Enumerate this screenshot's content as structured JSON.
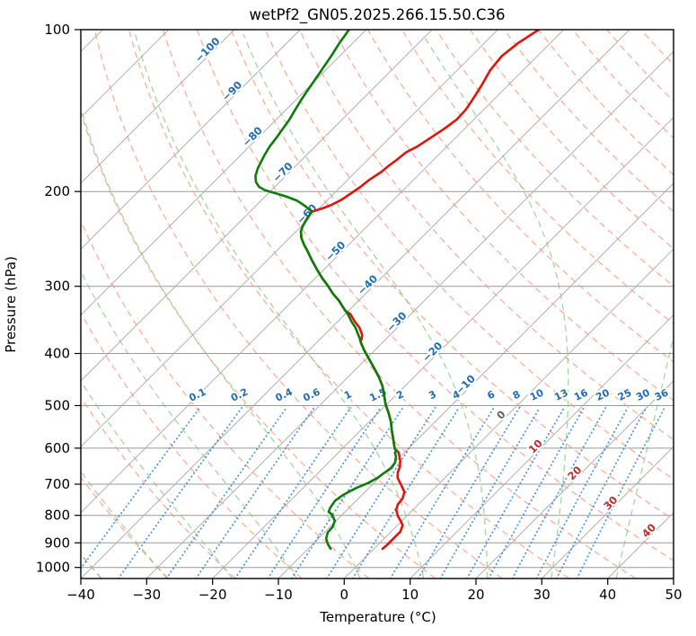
{
  "title": "wetPf2_GN05.2025.266.15.50.C36",
  "axes": {
    "xlabel": "Temperature (°C)",
    "ylabel": "Pressure (hPa)",
    "pressure_ticks": [
      100,
      200,
      300,
      400,
      500,
      600,
      700,
      800,
      900,
      1000
    ],
    "temp_ticks": [
      -40,
      -30,
      -20,
      -10,
      0,
      10,
      20,
      30,
      40,
      50
    ],
    "pressure_range": [
      100,
      1048
    ],
    "temp_range_at_surface": [
      -40,
      50
    ],
    "skew_degrees": 45
  },
  "chart_data": {
    "type": "skewt-log-p",
    "title": "wetPf2_GN05.2025.266.15.50.C36",
    "isotherms": {
      "min": -140,
      "max": 50,
      "step": 10
    },
    "isotherm_labels": [
      {
        "t": -100,
        "p": 109
      },
      {
        "t": -90,
        "p": 130
      },
      {
        "t": -80,
        "p": 158
      },
      {
        "t": -70,
        "p": 184
      },
      {
        "t": -60,
        "p": 220
      },
      {
        "t": -50,
        "p": 258
      },
      {
        "t": -40,
        "p": 298
      },
      {
        "t": -30,
        "p": 349
      },
      {
        "t": -20,
        "p": 397
      },
      {
        "t": -10,
        "p": 457
      },
      {
        "t": 0,
        "p": 520
      },
      {
        "t": 10,
        "p": 595
      },
      {
        "t": 20,
        "p": 667
      },
      {
        "t": 30,
        "p": 758
      },
      {
        "t": 40,
        "p": 853
      }
    ],
    "dry_adiabats": {
      "theta_min": -40,
      "theta_max": 190,
      "step": 10
    },
    "moist_adiabats": {
      "t0_min": -40,
      "t0_max": 80,
      "step": 10
    },
    "mixing_ratio": {
      "values": [
        0.1,
        0.2,
        0.4,
        0.6,
        1,
        1.5,
        2,
        3,
        4,
        6,
        8,
        10,
        13,
        16,
        20,
        25,
        30,
        36
      ],
      "top_pressure": 500,
      "label_pressure": 497
    },
    "series": [
      {
        "name": "temperature",
        "units": "degC vs hPa",
        "points": [
          [
            100,
            -53.8
          ],
          [
            106,
            -54.9
          ],
          [
            112,
            -55.4
          ],
          [
            119,
            -55.0
          ],
          [
            127,
            -54.0
          ],
          [
            134,
            -53.3
          ],
          [
            141,
            -52.7
          ],
          [
            147,
            -52.6
          ],
          [
            153,
            -53.1
          ],
          [
            159,
            -53.8
          ],
          [
            165,
            -54.5
          ],
          [
            169,
            -55.3
          ],
          [
            175,
            -55.6
          ],
          [
            179,
            -55.9
          ],
          [
            184,
            -56.1
          ],
          [
            190,
            -56.7
          ],
          [
            196,
            -57.0
          ],
          [
            201,
            -57.4
          ],
          [
            207,
            -57.9
          ],
          [
            212,
            -58.7
          ],
          [
            215,
            -59.5
          ],
          [
            218,
            -60.6
          ],
          [
            222,
            -60.4
          ],
          [
            226,
            -60.2
          ],
          [
            232,
            -59.8
          ],
          [
            237,
            -59.3
          ],
          [
            244,
            -58.2
          ],
          [
            251,
            -56.8
          ],
          [
            258,
            -55.3
          ],
          [
            268,
            -53.3
          ],
          [
            279,
            -51.1
          ],
          [
            290,
            -48.9
          ],
          [
            299,
            -47.0
          ],
          [
            310,
            -44.9
          ],
          [
            319,
            -43.0
          ],
          [
            328,
            -41.4
          ],
          [
            333,
            -40.5
          ],
          [
            338,
            -39.2
          ],
          [
            349,
            -37.4
          ],
          [
            358,
            -35.8
          ],
          [
            369,
            -34.3
          ],
          [
            375,
            -33.8
          ],
          [
            381,
            -33.4
          ],
          [
            394,
            -31.7
          ],
          [
            410,
            -29.5
          ],
          [
            426,
            -27.4
          ],
          [
            442,
            -25.4
          ],
          [
            460,
            -23.4
          ],
          [
            478,
            -21.8
          ],
          [
            497,
            -20.2
          ],
          [
            516,
            -18.4
          ],
          [
            536,
            -16.7
          ],
          [
            557,
            -15.2
          ],
          [
            579,
            -13.6
          ],
          [
            602,
            -12.0
          ],
          [
            606,
            -11.5
          ],
          [
            609,
            -11.1
          ],
          [
            615,
            -10.6
          ],
          [
            621,
            -10.2
          ],
          [
            633,
            -9.4
          ],
          [
            650,
            -8.5
          ],
          [
            665,
            -8.0
          ],
          [
            681,
            -7.2
          ],
          [
            694,
            -6.2
          ],
          [
            710,
            -5.0
          ],
          [
            724,
            -4.0
          ],
          [
            744,
            -3.3
          ],
          [
            764,
            -3.1
          ],
          [
            782,
            -2.5
          ],
          [
            803,
            -1.3
          ],
          [
            819,
            -0.2
          ],
          [
            835,
            0.8
          ],
          [
            858,
            1.4
          ],
          [
            874,
            1.4
          ],
          [
            891,
            1.4
          ],
          [
            909,
            1.4
          ],
          [
            923,
            1.3
          ]
        ]
      },
      {
        "name": "dewpoint",
        "units": "degC vs hPa",
        "points": [
          [
            100,
            -82.6
          ],
          [
            106,
            -82.0
          ],
          [
            112,
            -81.3
          ],
          [
            119,
            -80.6
          ],
          [
            127,
            -79.9
          ],
          [
            134,
            -79.3
          ],
          [
            141,
            -78.6
          ],
          [
            147,
            -78.0
          ],
          [
            153,
            -77.6
          ],
          [
            159,
            -77.2
          ],
          [
            165,
            -76.9
          ],
          [
            171,
            -76.4
          ],
          [
            176,
            -75.9
          ],
          [
            181,
            -75.4
          ],
          [
            187,
            -74.6
          ],
          [
            192,
            -73.6
          ],
          [
            196,
            -72.4
          ],
          [
            199,
            -70.9
          ],
          [
            201,
            -69.3
          ],
          [
            204,
            -67.0
          ],
          [
            208,
            -64.5
          ],
          [
            213,
            -62.4
          ],
          [
            218,
            -60.6
          ],
          [
            222,
            -60.4
          ],
          [
            226,
            -60.2
          ],
          [
            232,
            -59.8
          ],
          [
            237,
            -59.3
          ],
          [
            244,
            -58.2
          ],
          [
            251,
            -56.8
          ],
          [
            258,
            -55.3
          ],
          [
            268,
            -53.3
          ],
          [
            279,
            -51.1
          ],
          [
            290,
            -48.9
          ],
          [
            299,
            -47.0
          ],
          [
            310,
            -44.9
          ],
          [
            319,
            -43.0
          ],
          [
            328,
            -41.4
          ],
          [
            333,
            -40.5
          ],
          [
            338,
            -39.6
          ],
          [
            349,
            -37.9
          ],
          [
            358,
            -36.4
          ],
          [
            369,
            -34.9
          ],
          [
            375,
            -34.1
          ],
          [
            381,
            -33.4
          ],
          [
            394,
            -31.7
          ],
          [
            410,
            -29.5
          ],
          [
            426,
            -27.4
          ],
          [
            442,
            -25.4
          ],
          [
            460,
            -23.4
          ],
          [
            478,
            -21.8
          ],
          [
            497,
            -20.2
          ],
          [
            516,
            -18.4
          ],
          [
            536,
            -16.7
          ],
          [
            557,
            -15.2
          ],
          [
            579,
            -13.6
          ],
          [
            602,
            -12.0
          ],
          [
            606,
            -11.5
          ],
          [
            612,
            -11.4
          ],
          [
            621,
            -10.7
          ],
          [
            638,
            -9.9
          ],
          [
            653,
            -9.6
          ],
          [
            668,
            -10.0
          ],
          [
            681,
            -10.2
          ],
          [
            697,
            -10.9
          ],
          [
            710,
            -11.8
          ],
          [
            724,
            -12.5
          ],
          [
            735,
            -12.9
          ],
          [
            752,
            -13.2
          ],
          [
            773,
            -12.9
          ],
          [
            788,
            -12.5
          ],
          [
            797,
            -11.6
          ],
          [
            819,
            -10.2
          ],
          [
            841,
            -9.6
          ],
          [
            861,
            -9.5
          ],
          [
            884,
            -8.8
          ],
          [
            905,
            -7.7
          ],
          [
            923,
            -6.6
          ]
        ]
      }
    ]
  },
  "colors": {
    "temperature": "#e3120b",
    "dewpoint": "#0a7d0a",
    "isotherm": "#b0b0b0",
    "grid": "#999999",
    "dry_adiabat": "#ff8f75",
    "moist_adiabat": "#7cc47c",
    "mixing_ratio": "#2e86de",
    "label_negative": "#1f6cb5",
    "label_zero": "#606060",
    "label_positive": "#c62828",
    "frame": "#000000"
  }
}
